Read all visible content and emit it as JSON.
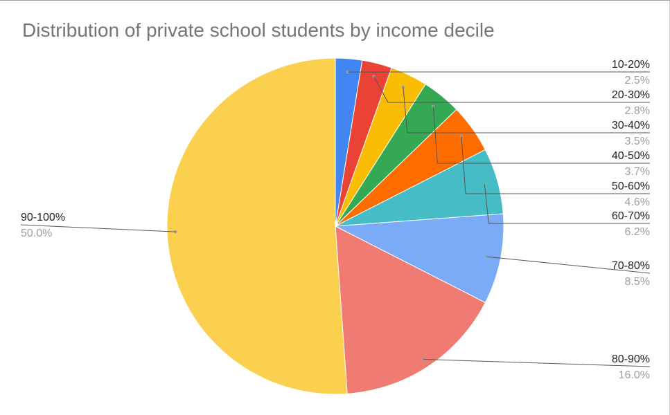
{
  "chart_data": {
    "type": "pie",
    "title": "Distribution of private school students by income decile",
    "categories": [
      "10-20%",
      "20-30%",
      "30-40%",
      "40-50%",
      "50-60%",
      "60-70%",
      "70-80%",
      "80-90%",
      "90-100%"
    ],
    "values": [
      2.5,
      2.8,
      3.5,
      3.7,
      4.6,
      6.2,
      8.5,
      16.0,
      50.0
    ],
    "percent_labels": [
      "2.5%",
      "2.8%",
      "3.5%",
      "3.7%",
      "4.6%",
      "6.2%",
      "8.5%",
      "16.0%",
      "50.0%"
    ],
    "colors": [
      "#4285f4",
      "#ea4335",
      "#fbbc04",
      "#34a853",
      "#ff6d01",
      "#46bdc6",
      "#7baaf7",
      "#f07b72",
      "#fcd04f",
      "#71c287"
    ],
    "legend": "labels beside slices",
    "start_angle": "top, clockwise"
  }
}
